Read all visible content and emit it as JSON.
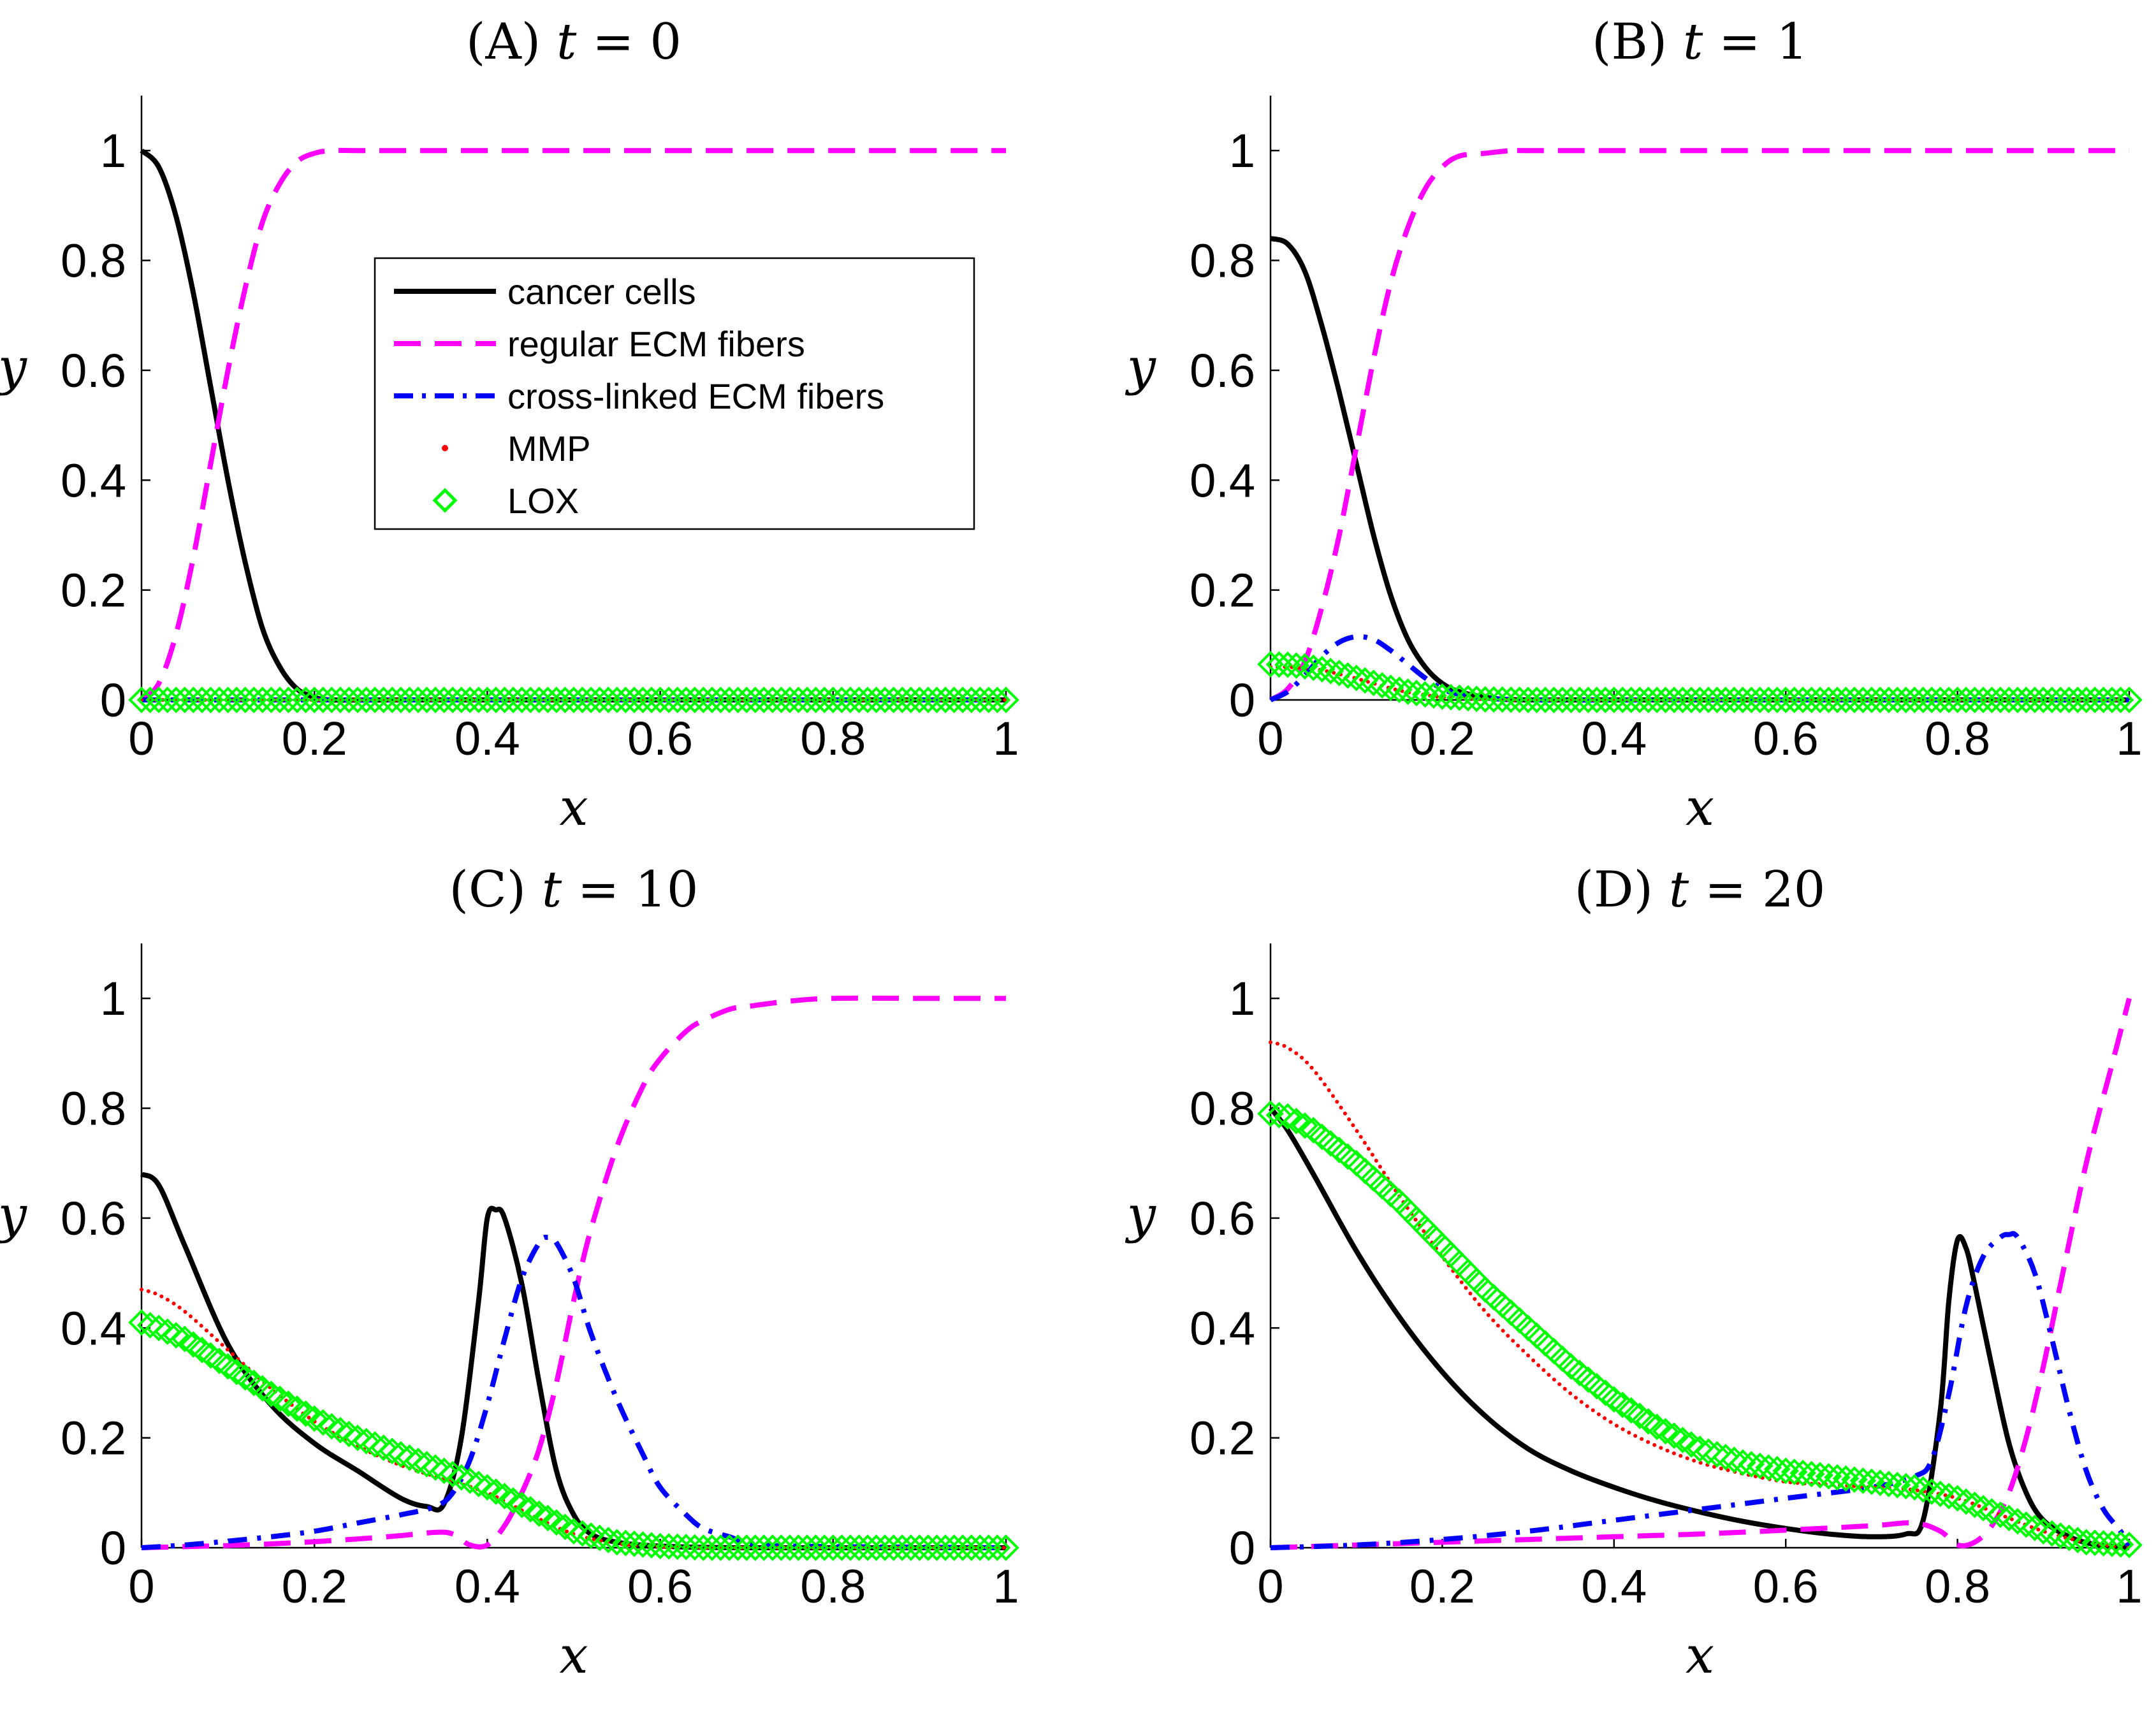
{
  "figure": {
    "colors": {
      "cancer": "#000000",
      "regular": "#ff00ff",
      "crosslinked": "#0000ff",
      "mmp": "#ff0000",
      "lox": "#00ff00"
    }
  },
  "chart_data": [
    {
      "type": "line",
      "panel": "A",
      "title_prefix": "(A) ",
      "title_var": "t",
      "title_rest": " = 0",
      "xlabel": "x",
      "ylabel": "y",
      "xlim": [
        0,
        1
      ],
      "ylim": [
        0,
        1.1
      ],
      "xticks": [
        0,
        0.2,
        0.4,
        0.6,
        0.8,
        1
      ],
      "yticks": [
        0,
        0.2,
        0.4,
        0.6,
        0.8,
        1
      ],
      "xtick_labels": [
        "0",
        "0.2",
        "0.4",
        "0.6",
        "0.8",
        "1"
      ],
      "ytick_labels": [
        "0",
        "0.2",
        "0.4",
        "0.6",
        "0.8",
        "1"
      ],
      "legend": {
        "position": "inside-top-center",
        "entries": [
          "cancer cells",
          "regular ECM fibers",
          "cross-linked ECM fibers",
          "MMP",
          "LOX"
        ]
      },
      "series": [
        {
          "name": "cancer cells",
          "style": "solid",
          "x": [
            0,
            0.02,
            0.04,
            0.06,
            0.08,
            0.1,
            0.12,
            0.14,
            0.16,
            0.18,
            0.2,
            0.22,
            0.3,
            0.5,
            1
          ],
          "y": [
            1.0,
            0.97,
            0.88,
            0.74,
            0.57,
            0.4,
            0.25,
            0.13,
            0.06,
            0.02,
            0.005,
            0,
            0,
            0,
            0
          ]
        },
        {
          "name": "regular ECM fibers",
          "style": "dashed",
          "x": [
            0,
            0.02,
            0.04,
            0.06,
            0.08,
            0.1,
            0.12,
            0.14,
            0.16,
            0.18,
            0.2,
            0.22,
            0.25,
            0.3,
            0.5,
            1
          ],
          "y": [
            0,
            0.03,
            0.12,
            0.26,
            0.43,
            0.6,
            0.75,
            0.87,
            0.94,
            0.98,
            0.995,
            1.0,
            1.0,
            1.0,
            1.0,
            1.0
          ]
        },
        {
          "name": "cross-linked ECM fibers",
          "style": "dashdot",
          "x": [
            0,
            1
          ],
          "y": [
            0,
            0
          ]
        },
        {
          "name": "MMP",
          "style": "dotted",
          "x": [
            0,
            1
          ],
          "y": [
            0,
            0
          ]
        },
        {
          "name": "LOX",
          "style": "diamond",
          "x": [
            0,
            1
          ],
          "y": [
            0,
            0
          ]
        }
      ]
    },
    {
      "type": "line",
      "panel": "B",
      "title_prefix": "(B) ",
      "title_var": "t",
      "title_rest": " = 1",
      "xlabel": "x",
      "ylabel": "y",
      "xlim": [
        0,
        1
      ],
      "ylim": [
        0,
        1.1
      ],
      "xticks": [
        0,
        0.2,
        0.4,
        0.6,
        0.8,
        1
      ],
      "yticks": [
        0,
        0.2,
        0.4,
        0.6,
        0.8,
        1
      ],
      "xtick_labels": [
        "0",
        "0.2",
        "0.4",
        "0.6",
        "0.8",
        "1"
      ],
      "ytick_labels": [
        "0",
        "0.2",
        "0.4",
        "0.6",
        "0.8",
        "1"
      ],
      "series": [
        {
          "name": "cancer cells",
          "style": "solid",
          "x": [
            0,
            0.02,
            0.04,
            0.06,
            0.08,
            0.1,
            0.12,
            0.14,
            0.16,
            0.18,
            0.2,
            0.22,
            0.25,
            0.3,
            0.5,
            1
          ],
          "y": [
            0.84,
            0.83,
            0.78,
            0.68,
            0.56,
            0.43,
            0.3,
            0.19,
            0.11,
            0.06,
            0.03,
            0.015,
            0.005,
            0,
            0,
            0
          ]
        },
        {
          "name": "regular ECM fibers",
          "style": "dashed",
          "x": [
            0,
            0.02,
            0.04,
            0.06,
            0.08,
            0.1,
            0.12,
            0.14,
            0.16,
            0.18,
            0.2,
            0.22,
            0.25,
            0.28,
            0.3,
            0.5,
            1
          ],
          "y": [
            0,
            0.02,
            0.07,
            0.17,
            0.3,
            0.46,
            0.62,
            0.76,
            0.86,
            0.93,
            0.97,
            0.99,
            0.995,
            1.0,
            1.0,
            1.0,
            1.0
          ]
        },
        {
          "name": "cross-linked ECM fibers",
          "style": "dashdot",
          "x": [
            0,
            0.02,
            0.04,
            0.06,
            0.08,
            0.1,
            0.12,
            0.14,
            0.16,
            0.18,
            0.2,
            0.22,
            0.25,
            0.3,
            0.5,
            1
          ],
          "y": [
            0,
            0.015,
            0.045,
            0.08,
            0.105,
            0.115,
            0.11,
            0.09,
            0.065,
            0.04,
            0.02,
            0.01,
            0.004,
            0,
            0,
            0
          ]
        },
        {
          "name": "MMP",
          "style": "dotted",
          "x": [
            0,
            0.02,
            0.04,
            0.06,
            0.08,
            0.1,
            0.12,
            0.14,
            0.16,
            0.18,
            0.2,
            0.25,
            0.3,
            0.5,
            1
          ],
          "y": [
            0.06,
            0.06,
            0.058,
            0.054,
            0.047,
            0.039,
            0.03,
            0.021,
            0.014,
            0.009,
            0.005,
            0.001,
            0,
            0,
            0
          ]
        },
        {
          "name": "LOX",
          "style": "diamond",
          "x": [
            0,
            0.02,
            0.04,
            0.06,
            0.08,
            0.1,
            0.12,
            0.14,
            0.16,
            0.18,
            0.2,
            0.25,
            0.3,
            0.5,
            1
          ],
          "y": [
            0.065,
            0.064,
            0.061,
            0.056,
            0.049,
            0.04,
            0.031,
            0.022,
            0.015,
            0.01,
            0.006,
            0.001,
            0,
            0,
            0
          ]
        }
      ]
    },
    {
      "type": "line",
      "panel": "C",
      "title_prefix": "(C) ",
      "title_var": "t",
      "title_rest": " = 10",
      "xlabel": "x",
      "ylabel": "y",
      "xlim": [
        0,
        1
      ],
      "ylim": [
        0,
        1.1
      ],
      "xticks": [
        0,
        0.2,
        0.4,
        0.6,
        0.8,
        1
      ],
      "yticks": [
        0,
        0.2,
        0.4,
        0.6,
        0.8,
        1
      ],
      "xtick_labels": [
        "0",
        "0.2",
        "0.4",
        "0.6",
        "0.8",
        "1"
      ],
      "ytick_labels": [
        "0",
        "0.2",
        "0.4",
        "0.6",
        "0.8",
        "1"
      ],
      "series": [
        {
          "name": "cancer cells",
          "style": "solid",
          "x": [
            0,
            0.02,
            0.05,
            0.1,
            0.15,
            0.2,
            0.25,
            0.3,
            0.33,
            0.35,
            0.37,
            0.39,
            0.4,
            0.41,
            0.42,
            0.44,
            0.46,
            0.48,
            0.5,
            0.52,
            0.55,
            0.6,
            0.7,
            1
          ],
          "y": [
            0.68,
            0.66,
            0.55,
            0.37,
            0.26,
            0.19,
            0.14,
            0.09,
            0.075,
            0.08,
            0.2,
            0.45,
            0.6,
            0.615,
            0.6,
            0.48,
            0.3,
            0.14,
            0.06,
            0.025,
            0.01,
            0.003,
            0,
            0
          ]
        },
        {
          "name": "regular ECM fibers",
          "style": "dashed",
          "x": [
            0,
            0.05,
            0.1,
            0.15,
            0.2,
            0.25,
            0.3,
            0.34,
            0.36,
            0.38,
            0.4,
            0.42,
            0.44,
            0.46,
            0.48,
            0.5,
            0.52,
            0.55,
            0.58,
            0.6,
            0.63,
            0.65,
            0.68,
            0.7,
            0.75,
            0.8,
            0.9,
            1
          ],
          "y": [
            0,
            0.002,
            0.004,
            0.007,
            0.011,
            0.016,
            0.022,
            0.028,
            0.025,
            0.005,
            0.005,
            0.04,
            0.1,
            0.18,
            0.3,
            0.45,
            0.58,
            0.73,
            0.84,
            0.89,
            0.94,
            0.96,
            0.98,
            0.985,
            0.995,
            1.0,
            1.0,
            1.0
          ]
        },
        {
          "name": "cross-linked ECM fibers",
          "style": "dashdot",
          "x": [
            0,
            0.05,
            0.1,
            0.15,
            0.2,
            0.25,
            0.3,
            0.34,
            0.36,
            0.38,
            0.4,
            0.42,
            0.44,
            0.46,
            0.47,
            0.48,
            0.5,
            0.52,
            0.55,
            0.58,
            0.6,
            0.63,
            0.65,
            0.68,
            0.7,
            0.75,
            1
          ],
          "y": [
            0,
            0.005,
            0.012,
            0.02,
            0.03,
            0.045,
            0.06,
            0.075,
            0.1,
            0.16,
            0.26,
            0.38,
            0.49,
            0.555,
            0.565,
            0.555,
            0.49,
            0.39,
            0.27,
            0.17,
            0.11,
            0.06,
            0.035,
            0.02,
            0.01,
            0.003,
            0
          ]
        },
        {
          "name": "MMP",
          "style": "dotted",
          "x": [
            0,
            0.02,
            0.05,
            0.1,
            0.15,
            0.2,
            0.25,
            0.3,
            0.35,
            0.4,
            0.45,
            0.5,
            0.55,
            0.6,
            0.65,
            0.7,
            1
          ],
          "y": [
            0.47,
            0.46,
            0.43,
            0.36,
            0.29,
            0.23,
            0.185,
            0.15,
            0.125,
            0.1,
            0.06,
            0.025,
            0.008,
            0.002,
            0,
            0,
            0
          ]
        },
        {
          "name": "LOX",
          "style": "diamond",
          "x": [
            0,
            0.02,
            0.05,
            0.1,
            0.15,
            0.2,
            0.25,
            0.3,
            0.35,
            0.4,
            0.45,
            0.5,
            0.55,
            0.6,
            0.65,
            0.7,
            1
          ],
          "y": [
            0.41,
            0.4,
            0.38,
            0.33,
            0.28,
            0.235,
            0.2,
            0.17,
            0.14,
            0.11,
            0.07,
            0.03,
            0.01,
            0.003,
            0,
            0,
            0
          ]
        }
      ]
    },
    {
      "type": "line",
      "panel": "D",
      "title_prefix": "(D) ",
      "title_var": "t",
      "title_rest": " = 20",
      "xlabel": "x",
      "ylabel": "y",
      "xlim": [
        0,
        1
      ],
      "ylim": [
        0,
        1.1
      ],
      "xticks": [
        0,
        0.2,
        0.4,
        0.6,
        0.8,
        1
      ],
      "yticks": [
        0,
        0.2,
        0.4,
        0.6,
        0.8,
        1
      ],
      "xtick_labels": [
        "0",
        "0.2",
        "0.4",
        "0.6",
        "0.8",
        "1"
      ],
      "ytick_labels": [
        "0",
        "0.2",
        "0.4",
        "0.6",
        "0.8",
        "1"
      ],
      "series": [
        {
          "name": "cancer cells",
          "style": "solid",
          "x": [
            0,
            0.02,
            0.05,
            0.1,
            0.15,
            0.2,
            0.25,
            0.3,
            0.35,
            0.4,
            0.45,
            0.5,
            0.55,
            0.6,
            0.65,
            0.7,
            0.74,
            0.76,
            0.78,
            0.79,
            0.8,
            0.81,
            0.82,
            0.84,
            0.86,
            0.88,
            0.9,
            0.93,
            0.96,
            1
          ],
          "y": [
            0.8,
            0.76,
            0.68,
            0.54,
            0.42,
            0.32,
            0.24,
            0.18,
            0.14,
            0.11,
            0.085,
            0.065,
            0.048,
            0.035,
            0.025,
            0.02,
            0.025,
            0.05,
            0.25,
            0.45,
            0.56,
            0.545,
            0.48,
            0.33,
            0.19,
            0.1,
            0.05,
            0.02,
            0.006,
            0
          ]
        },
        {
          "name": "regular ECM fibers",
          "style": "dashed",
          "x": [
            0,
            0.1,
            0.2,
            0.3,
            0.4,
            0.5,
            0.6,
            0.7,
            0.75,
            0.78,
            0.8,
            0.82,
            0.84,
            0.86,
            0.88,
            0.9,
            0.92,
            0.95,
            0.98,
            1
          ],
          "y": [
            0,
            0.005,
            0.01,
            0.015,
            0.02,
            0.025,
            0.032,
            0.04,
            0.045,
            0.03,
            0.005,
            0.01,
            0.04,
            0.1,
            0.2,
            0.33,
            0.48,
            0.7,
            0.88,
            1.0
          ]
        },
        {
          "name": "cross-linked ECM fibers",
          "style": "dashdot",
          "x": [
            0,
            0.1,
            0.2,
            0.3,
            0.4,
            0.5,
            0.6,
            0.7,
            0.75,
            0.77,
            0.79,
            0.81,
            0.83,
            0.85,
            0.86,
            0.87,
            0.89,
            0.91,
            0.93,
            0.95,
            0.97,
            0.99,
            1
          ],
          "y": [
            0,
            0.005,
            0.015,
            0.03,
            0.05,
            0.07,
            0.09,
            0.11,
            0.13,
            0.16,
            0.28,
            0.44,
            0.53,
            0.565,
            0.57,
            0.565,
            0.5,
            0.38,
            0.25,
            0.14,
            0.07,
            0.03,
            0
          ]
        },
        {
          "name": "MMP",
          "style": "dotted",
          "x": [
            0,
            0.02,
            0.05,
            0.1,
            0.15,
            0.2,
            0.25,
            0.3,
            0.35,
            0.4,
            0.45,
            0.5,
            0.55,
            0.6,
            0.65,
            0.7,
            0.75,
            0.8,
            0.85,
            0.9,
            0.95,
            1
          ],
          "y": [
            0.92,
            0.91,
            0.87,
            0.76,
            0.64,
            0.53,
            0.43,
            0.35,
            0.28,
            0.225,
            0.185,
            0.155,
            0.135,
            0.12,
            0.115,
            0.11,
            0.105,
            0.09,
            0.06,
            0.03,
            0.01,
            0
          ]
        },
        {
          "name": "LOX",
          "style": "diamond",
          "x": [
            0,
            0.02,
            0.05,
            0.1,
            0.15,
            0.2,
            0.25,
            0.3,
            0.35,
            0.4,
            0.45,
            0.5,
            0.55,
            0.6,
            0.65,
            0.7,
            0.75,
            0.8,
            0.85,
            0.9,
            0.95,
            1
          ],
          "y": [
            0.79,
            0.785,
            0.76,
            0.7,
            0.63,
            0.55,
            0.47,
            0.4,
            0.33,
            0.27,
            0.22,
            0.18,
            0.155,
            0.14,
            0.13,
            0.12,
            0.11,
            0.09,
            0.06,
            0.03,
            0.01,
            0.005
          ]
        }
      ]
    }
  ]
}
